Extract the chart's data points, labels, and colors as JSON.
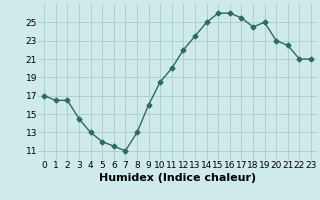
{
  "x": [
    0,
    1,
    2,
    3,
    4,
    5,
    6,
    7,
    8,
    9,
    10,
    11,
    12,
    13,
    14,
    15,
    16,
    17,
    18,
    19,
    20,
    21,
    22,
    23
  ],
  "y": [
    17,
    16.5,
    16.5,
    14.5,
    13,
    12,
    11.5,
    11,
    13,
    16,
    18.5,
    20,
    22,
    23.5,
    25,
    26,
    26,
    25.5,
    24.5,
    25,
    23,
    22.5,
    21,
    21
  ],
  "line_color": "#2d6b5e",
  "marker": "D",
  "marker_size": 2.5,
  "bg_color": "#ceeaea",
  "grid_color": "#b0d0d0",
  "xlabel": "Humidex (Indice chaleur)",
  "xlim": [
    -0.5,
    23.5
  ],
  "ylim": [
    10,
    27
  ],
  "yticks": [
    11,
    13,
    15,
    17,
    19,
    21,
    23,
    25
  ],
  "xticks": [
    0,
    1,
    2,
    3,
    4,
    5,
    6,
    7,
    8,
    9,
    10,
    11,
    12,
    13,
    14,
    15,
    16,
    17,
    18,
    19,
    20,
    21,
    22,
    23
  ],
  "tick_label_fontsize": 6.5,
  "xlabel_fontsize": 8.0
}
